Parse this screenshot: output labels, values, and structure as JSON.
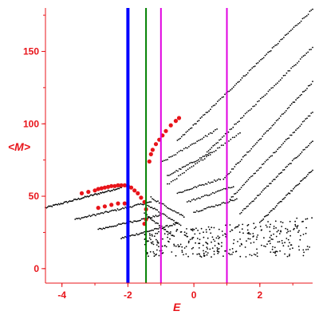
{
  "chart_data": {
    "type": "scatter",
    "title": "",
    "xlabel": "E",
    "ylabel": "<M>",
    "xlim": [
      -4.5,
      3.6
    ],
    "ylim": [
      -10,
      180
    ],
    "xticks": [
      -4,
      -2,
      0,
      2
    ],
    "xtick_labels": [
      "-4",
      "-2",
      "0",
      "2"
    ],
    "yticks": [
      0,
      50,
      100,
      150
    ],
    "ytick_labels": [
      "0",
      "50",
      "100",
      "150"
    ],
    "grid": false,
    "legend": "none",
    "axis_color": "#e8141a",
    "vertical_lines": [
      {
        "x": -2.0,
        "color": "#0000ff",
        "style": "thick"
      },
      {
        "x": -1.45,
        "color": "#008000",
        "style": "thin"
      },
      {
        "x": -1.0,
        "color": "#e000e0",
        "style": "thin"
      },
      {
        "x": 1.0,
        "color": "#e000e0",
        "style": "thin"
      }
    ],
    "series": [
      {
        "color": "#000000",
        "marker": "small-dot",
        "curves": [
          {
            "x0": -4.5,
            "y0": 42,
            "x1": -2.2,
            "y1": 56,
            "n": 70
          },
          {
            "x0": -3.6,
            "y0": 34,
            "x1": -1.3,
            "y1": 46,
            "n": 60
          },
          {
            "x0": -2.9,
            "y0": 27,
            "x1": -1.0,
            "y1": 37,
            "n": 50
          },
          {
            "x0": -2.2,
            "y0": 21,
            "x1": -0.5,
            "y1": 31,
            "n": 45
          },
          {
            "x0": -0.5,
            "y0": 88,
            "x1": 3.6,
            "y1": 179,
            "n": 95
          },
          {
            "x0": 0.4,
            "y0": 80,
            "x1": 3.6,
            "y1": 153,
            "n": 70
          },
          {
            "x0": 0.9,
            "y0": 62,
            "x1": 3.6,
            "y1": 129,
            "n": 65
          },
          {
            "x0": 1.1,
            "y0": 48,
            "x1": 3.6,
            "y1": 108,
            "n": 60
          },
          {
            "x0": 1.4,
            "y0": 38,
            "x1": 3.6,
            "y1": 88,
            "n": 55
          },
          {
            "x0": 2.0,
            "y0": 32,
            "x1": 3.6,
            "y1": 68,
            "n": 45
          },
          {
            "x0": -1.0,
            "y0": 73,
            "x1": 0.7,
            "y1": 96,
            "n": 35
          },
          {
            "x0": -0.8,
            "y0": 64,
            "x1": 0.5,
            "y1": 80,
            "n": 30
          },
          {
            "x0": -0.8,
            "y0": 58,
            "x1": 1.4,
            "y1": 94,
            "n": 40
          },
          {
            "x0": -0.5,
            "y0": 52,
            "x1": 0.8,
            "y1": 62,
            "n": 30
          },
          {
            "x0": -0.2,
            "y0": 46,
            "x1": 1.2,
            "y1": 57,
            "n": 30
          },
          {
            "x0": 0.0,
            "y0": 39,
            "x1": 1.3,
            "y1": 48,
            "n": 30
          },
          {
            "x0": -1.5,
            "y0": 38,
            "x1": -0.6,
            "y1": 22,
            "n": 25
          },
          {
            "x0": -1.4,
            "y0": 44,
            "x1": -0.4,
            "y1": 30,
            "n": 25
          },
          {
            "x0": -1.3,
            "y0": 49,
            "x1": -0.3,
            "y1": 36,
            "n": 25
          }
        ],
        "cloud": {
          "x0": -1.5,
          "x1": 3.6,
          "y0": 8,
          "y1": 36,
          "n": 340
        }
      },
      {
        "color": "#e8141a",
        "marker": "large-dot",
        "points": [
          [
            -3.4,
            52
          ],
          [
            -3.2,
            53
          ],
          [
            -3.0,
            54
          ],
          [
            -2.9,
            55
          ],
          [
            -2.8,
            55.5
          ],
          [
            -2.7,
            56
          ],
          [
            -2.6,
            56.5
          ],
          [
            -2.5,
            57
          ],
          [
            -2.4,
            57
          ],
          [
            -2.3,
            57.5
          ],
          [
            -2.2,
            57.5
          ],
          [
            -2.1,
            57.5
          ],
          [
            -2.0,
            57
          ],
          [
            -1.9,
            56
          ],
          [
            -1.8,
            54
          ],
          [
            -1.7,
            52
          ],
          [
            -1.6,
            49
          ],
          [
            -1.5,
            46
          ],
          [
            -1.45,
            41
          ],
          [
            -1.45,
            34
          ],
          [
            -1.5,
            31
          ],
          [
            -1.35,
            74
          ],
          [
            -1.3,
            79
          ],
          [
            -1.25,
            82
          ],
          [
            -1.15,
            86
          ],
          [
            -1.05,
            89
          ],
          [
            -0.95,
            92
          ],
          [
            -0.85,
            95
          ],
          [
            -0.7,
            99
          ],
          [
            -0.55,
            102
          ],
          [
            -0.45,
            104
          ],
          [
            -2.9,
            42
          ],
          [
            -2.7,
            43
          ],
          [
            -2.5,
            44
          ],
          [
            -2.3,
            45
          ],
          [
            -2.1,
            45
          ]
        ]
      }
    ]
  }
}
